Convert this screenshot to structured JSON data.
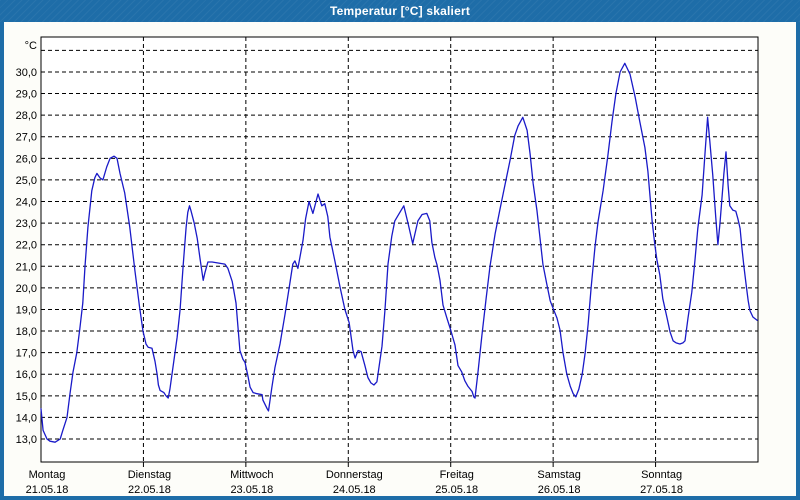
{
  "window": {
    "title": "Temperatur [°C] skaliert"
  },
  "colors": {
    "frame": "#1e6da8",
    "title_text": "#ffffff",
    "plot_background": "#ffffff",
    "grid": "#000000",
    "line": "#1a1ac8",
    "axis_text": "#000000"
  },
  "chart_data": {
    "type": "line",
    "title": "Temperatur [°C] skaliert",
    "y_unit_label": "°C",
    "grid": "dashed",
    "legend_position": "none",
    "ylim": [
      11.9,
      31.4
    ],
    "x_hours_range": [
      0,
      168
    ],
    "yticks": [
      {
        "value": 30,
        "label": "30,0"
      },
      {
        "value": 29,
        "label": "29,0"
      },
      {
        "value": 28,
        "label": "28,0"
      },
      {
        "value": 27,
        "label": "27,0"
      },
      {
        "value": 26,
        "label": "26,0"
      },
      {
        "value": 25,
        "label": "25,0"
      },
      {
        "value": 24,
        "label": "24,0"
      },
      {
        "value": 23,
        "label": "23,0"
      },
      {
        "value": 22,
        "label": "22,0"
      },
      {
        "value": 21,
        "label": "21,0"
      },
      {
        "value": 20,
        "label": "20,0"
      },
      {
        "value": 19,
        "label": "19,0"
      },
      {
        "value": 18,
        "label": "18,0"
      },
      {
        "value": 17,
        "label": "17,0"
      },
      {
        "value": 16,
        "label": "16,0"
      },
      {
        "value": 15,
        "label": "15,0"
      },
      {
        "value": 14,
        "label": "14,0"
      },
      {
        "value": 13,
        "label": "13,0"
      }
    ],
    "ygrid_unlabeled": [
      31
    ],
    "x_days": [
      {
        "name": "Montag",
        "date": "21.05.18"
      },
      {
        "name": "Dienstag",
        "date": "22.05.18"
      },
      {
        "name": "Mittwoch",
        "date": "23.05.18"
      },
      {
        "name": "Donnerstag",
        "date": "24.05.18"
      },
      {
        "name": "Freitag",
        "date": "25.05.18"
      },
      {
        "name": "Samstag",
        "date": "26.05.18"
      },
      {
        "name": "Sonntag",
        "date": "27.05.18"
      }
    ],
    "series": [
      {
        "name": "Temperatur",
        "color": "#1a1ac8",
        "points": [
          [
            0.0,
            14.4
          ],
          [
            0.5,
            13.4
          ],
          [
            1.4,
            13.0
          ],
          [
            2.1,
            12.9
          ],
          [
            3.3,
            12.85
          ],
          [
            4.5,
            13.0
          ],
          [
            5.1,
            13.4
          ],
          [
            6.1,
            14.0
          ],
          [
            6.8,
            15.1
          ],
          [
            7.5,
            16.1
          ],
          [
            8.4,
            17.0
          ],
          [
            9.1,
            18.1
          ],
          [
            9.8,
            19.3
          ],
          [
            10.3,
            21.0
          ],
          [
            11.0,
            22.8
          ],
          [
            11.9,
            24.5
          ],
          [
            12.6,
            25.1
          ],
          [
            13.1,
            25.3
          ],
          [
            13.8,
            25.1
          ],
          [
            14.5,
            25.0
          ],
          [
            15.4,
            25.6
          ],
          [
            16.2,
            26.0
          ],
          [
            17.1,
            26.1
          ],
          [
            17.8,
            26.0
          ],
          [
            18.5,
            25.3
          ],
          [
            19.6,
            24.4
          ],
          [
            20.8,
            22.8
          ],
          [
            22.0,
            20.8
          ],
          [
            23.1,
            19.1
          ],
          [
            23.9,
            18.0
          ],
          [
            24.6,
            17.4
          ],
          [
            25.1,
            17.25
          ],
          [
            26.0,
            17.2
          ],
          [
            26.7,
            16.6
          ],
          [
            27.2,
            16.0
          ],
          [
            27.5,
            15.5
          ],
          [
            27.9,
            15.25
          ],
          [
            28.8,
            15.15
          ],
          [
            29.3,
            15.0
          ],
          [
            29.8,
            14.9
          ],
          [
            30.2,
            15.3
          ],
          [
            30.7,
            16.0
          ],
          [
            31.4,
            17.0
          ],
          [
            31.9,
            17.7
          ],
          [
            32.6,
            19.0
          ],
          [
            33.3,
            21.0
          ],
          [
            34.0,
            22.8
          ],
          [
            34.4,
            23.5
          ],
          [
            34.8,
            23.8
          ],
          [
            35.1,
            23.6
          ],
          [
            35.9,
            23.0
          ],
          [
            36.6,
            22.3
          ],
          [
            37.3,
            21.3
          ],
          [
            38.0,
            20.35
          ],
          [
            38.4,
            20.7
          ],
          [
            39.1,
            21.2
          ],
          [
            40.1,
            21.2
          ],
          [
            41.5,
            21.15
          ],
          [
            43.1,
            21.1
          ],
          [
            43.8,
            20.9
          ],
          [
            44.8,
            20.3
          ],
          [
            45.7,
            19.3
          ],
          [
            46.6,
            17.1
          ],
          [
            47.3,
            16.7
          ],
          [
            47.8,
            16.55
          ],
          [
            48.5,
            15.9
          ],
          [
            49.0,
            15.4
          ],
          [
            49.7,
            15.15
          ],
          [
            50.6,
            15.1
          ],
          [
            51.8,
            15.05
          ],
          [
            52.0,
            14.8
          ],
          [
            53.0,
            14.4
          ],
          [
            53.3,
            14.3
          ],
          [
            54.1,
            15.4
          ],
          [
            54.8,
            16.3
          ],
          [
            56.0,
            17.4
          ],
          [
            57.2,
            18.8
          ],
          [
            58.3,
            20.2
          ],
          [
            59.0,
            21.1
          ],
          [
            59.5,
            21.25
          ],
          [
            60.2,
            20.9
          ],
          [
            61.4,
            22.2
          ],
          [
            62.0,
            23.2
          ],
          [
            62.8,
            24.0
          ],
          [
            63.7,
            23.45
          ],
          [
            64.9,
            24.35
          ],
          [
            65.8,
            23.8
          ],
          [
            66.5,
            23.9
          ],
          [
            67.2,
            23.3
          ],
          [
            67.7,
            22.35
          ],
          [
            68.9,
            21.2
          ],
          [
            70.1,
            20.0
          ],
          [
            71.2,
            19.0
          ],
          [
            72.2,
            18.4
          ],
          [
            73.1,
            17.1
          ],
          [
            73.6,
            16.75
          ],
          [
            74.3,
            17.1
          ],
          [
            75.0,
            17.05
          ],
          [
            75.9,
            16.4
          ],
          [
            76.6,
            15.85
          ],
          [
            77.3,
            15.6
          ],
          [
            78.0,
            15.5
          ],
          [
            78.7,
            15.65
          ],
          [
            79.9,
            17.3
          ],
          [
            80.6,
            19.0
          ],
          [
            81.3,
            21.1
          ],
          [
            82.2,
            22.4
          ],
          [
            82.9,
            23.1
          ],
          [
            84.1,
            23.5
          ],
          [
            85.0,
            23.8
          ],
          [
            86.0,
            23.0
          ],
          [
            87.1,
            22.05
          ],
          [
            88.3,
            23.1
          ],
          [
            89.3,
            23.4
          ],
          [
            90.4,
            23.45
          ],
          [
            91.1,
            23.1
          ],
          [
            91.6,
            22.1
          ],
          [
            92.3,
            21.4
          ],
          [
            92.8,
            21.05
          ],
          [
            93.5,
            20.35
          ],
          [
            94.2,
            19.2
          ],
          [
            95.1,
            18.6
          ],
          [
            96.0,
            18.05
          ],
          [
            97.0,
            17.35
          ],
          [
            97.7,
            16.4
          ],
          [
            98.6,
            16.1
          ],
          [
            99.3,
            15.7
          ],
          [
            100.0,
            15.45
          ],
          [
            101.0,
            15.2
          ],
          [
            101.4,
            14.95
          ],
          [
            101.7,
            14.9
          ],
          [
            102.4,
            16.1
          ],
          [
            103.3,
            17.8
          ],
          [
            104.3,
            19.5
          ],
          [
            105.2,
            21.0
          ],
          [
            106.4,
            22.5
          ],
          [
            107.5,
            23.6
          ],
          [
            108.7,
            24.75
          ],
          [
            109.9,
            25.9
          ],
          [
            111.0,
            27.05
          ],
          [
            111.8,
            27.5
          ],
          [
            112.9,
            27.9
          ],
          [
            113.9,
            27.3
          ],
          [
            114.6,
            26.2
          ],
          [
            115.3,
            24.85
          ],
          [
            116.2,
            23.6
          ],
          [
            116.9,
            22.35
          ],
          [
            117.6,
            21.1
          ],
          [
            118.5,
            20.2
          ],
          [
            119.3,
            19.4
          ],
          [
            119.9,
            19.1
          ],
          [
            120.9,
            18.6
          ],
          [
            121.6,
            18.05
          ],
          [
            122.3,
            17.0
          ],
          [
            123.2,
            16.0
          ],
          [
            124.0,
            15.45
          ],
          [
            124.7,
            15.1
          ],
          [
            125.3,
            14.95
          ],
          [
            126.0,
            15.3
          ],
          [
            126.8,
            16.0
          ],
          [
            127.5,
            17.0
          ],
          [
            128.2,
            18.3
          ],
          [
            128.9,
            20.0
          ],
          [
            129.8,
            21.9
          ],
          [
            130.5,
            23.05
          ],
          [
            131.7,
            24.5
          ],
          [
            132.8,
            26.1
          ],
          [
            133.8,
            27.7
          ],
          [
            134.7,
            29.0
          ],
          [
            135.7,
            30.0
          ],
          [
            136.8,
            30.4
          ],
          [
            138.0,
            29.9
          ],
          [
            139.2,
            28.85
          ],
          [
            140.3,
            27.7
          ],
          [
            141.5,
            26.5
          ],
          [
            142.2,
            25.4
          ],
          [
            143.2,
            23.05
          ],
          [
            143.9,
            21.9
          ],
          [
            144.3,
            21.3
          ],
          [
            145.0,
            20.6
          ],
          [
            145.7,
            19.5
          ],
          [
            146.7,
            18.6
          ],
          [
            147.4,
            17.95
          ],
          [
            148.1,
            17.55
          ],
          [
            148.8,
            17.45
          ],
          [
            149.7,
            17.4
          ],
          [
            150.4,
            17.45
          ],
          [
            150.9,
            17.55
          ],
          [
            151.6,
            18.6
          ],
          [
            152.5,
            19.8
          ],
          [
            153.2,
            21.2
          ],
          [
            153.9,
            22.75
          ],
          [
            154.9,
            24.3
          ],
          [
            155.6,
            26.3
          ],
          [
            156.2,
            27.9
          ],
          [
            156.7,
            26.8
          ],
          [
            157.4,
            25.2
          ],
          [
            158.1,
            23.3
          ],
          [
            158.6,
            22.0
          ],
          [
            159.1,
            23.0
          ],
          [
            159.5,
            24.0
          ],
          [
            160.0,
            25.3
          ],
          [
            160.5,
            26.3
          ],
          [
            161.0,
            24.75
          ],
          [
            161.4,
            23.8
          ],
          [
            162.1,
            23.6
          ],
          [
            162.8,
            23.55
          ],
          [
            163.3,
            23.2
          ],
          [
            163.8,
            22.75
          ],
          [
            164.2,
            21.9
          ],
          [
            164.7,
            21.0
          ],
          [
            165.2,
            20.2
          ],
          [
            165.7,
            19.4
          ],
          [
            166.1,
            18.95
          ],
          [
            166.8,
            18.65
          ],
          [
            167.8,
            18.5
          ]
        ]
      }
    ]
  }
}
